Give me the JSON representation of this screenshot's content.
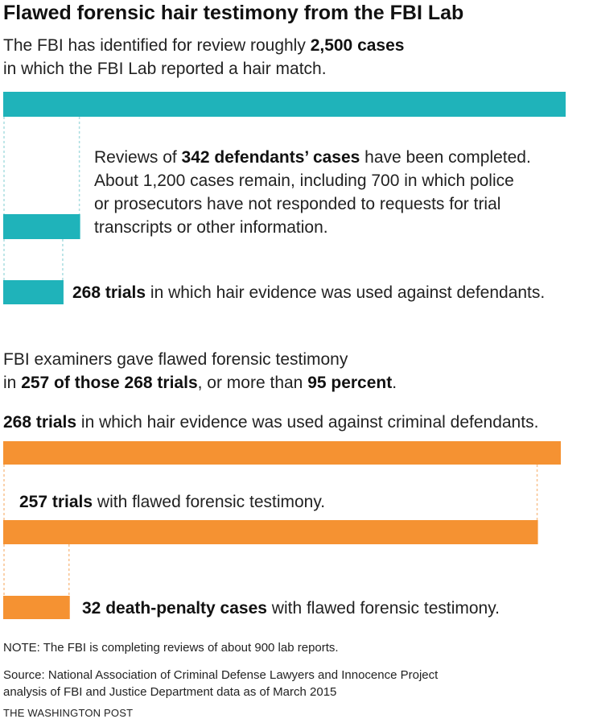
{
  "title": "Flawed forensic hair testimony from the FBI Lab",
  "intro": {
    "pre": "The FBI has identified for review roughly ",
    "bold": "2,500 cases",
    "post": "in which the FBI Lab reported a hair match."
  },
  "teal_labels": {
    "completed_pre": "Reviews of ",
    "completed_bold": "342 defendants’ cases",
    "completed_post": " have been completed.",
    "completed_line2": "About 1,200 cases remain, including 700 in which police",
    "completed_line3": "or prosecutors have not responded to requests for trial",
    "completed_line4": "transcripts or other information.",
    "trials_bold": "268 trials",
    "trials_post": " in which hair evidence was used against defendants."
  },
  "section2": {
    "line1": "FBI examiners gave flawed forensic testimony",
    "line2_pre": "in ",
    "line2_bold1": "257 of those 268 trials",
    "line2_mid": ", or more than ",
    "line2_bold2": "95 percent",
    "line2_post": "."
  },
  "orange_labels": {
    "a_bold": "268 trials",
    "a_post": " in which hair evidence was used against criminal defendants.",
    "b_bold": "257 trials",
    "b_post": " with flawed forensic testimony.",
    "c_bold": "32 death-penalty cases",
    "c_post": " with flawed forensic testimony."
  },
  "note": "NOTE: The FBI is completing reviews of about 900 lab reports.",
  "source_line1": "Source: National Association of Criminal Defense Lawyers and Innocence Project",
  "source_line2": "analysis of FBI and Justice Department data as of March 2015",
  "credit": "THE WASHINGTON POST",
  "colors": {
    "teal": "#1fb3ba",
    "orange": "#f59232"
  },
  "chart_data": [
    {
      "type": "bar",
      "orientation": "horizontal",
      "categories": [
        "cases identified for review",
        "defendants' cases reviewed",
        "trials with hair evidence"
      ],
      "values": [
        2500,
        342,
        268
      ],
      "color": "#1fb3ba"
    },
    {
      "type": "bar",
      "orientation": "horizontal",
      "categories": [
        "trials with hair evidence",
        "trials with flawed testimony",
        "death-penalty cases with flawed testimony"
      ],
      "values": [
        268,
        257,
        32
      ],
      "color": "#f59232"
    }
  ]
}
